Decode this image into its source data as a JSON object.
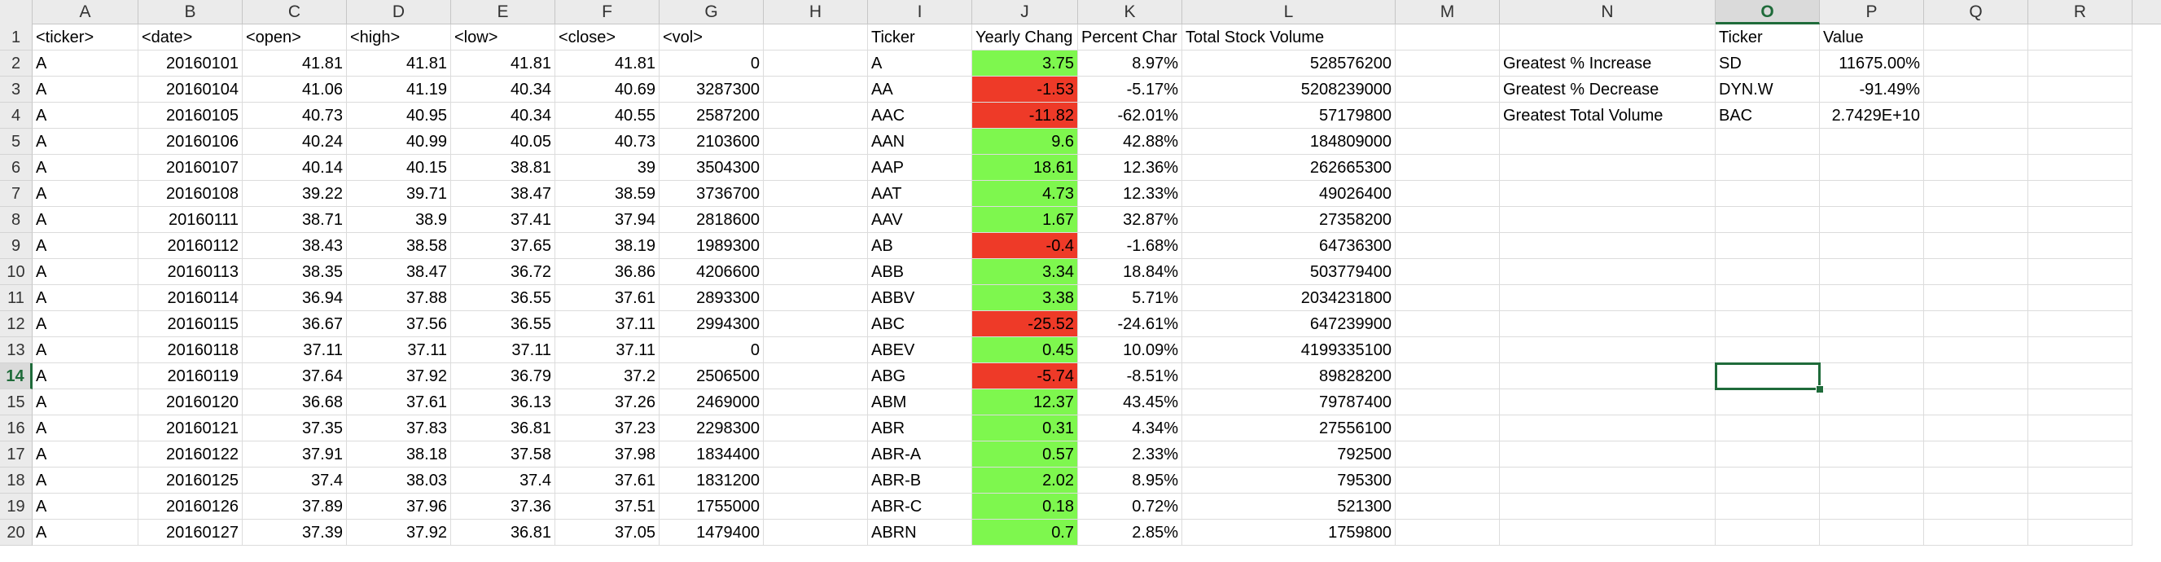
{
  "columns": [
    "A",
    "B",
    "C",
    "D",
    "E",
    "F",
    "G",
    "H",
    "I",
    "J",
    "K",
    "L",
    "M",
    "N",
    "O",
    "P",
    "Q",
    "R"
  ],
  "selected_column": "O",
  "selected_row": 14,
  "selected_cell": "O14",
  "fill_colors": {
    "positive": "#7ef74e",
    "negative": "#ee3a28",
    "selection": "#1f6b3a"
  },
  "rows": [
    {
      "n": "1",
      "A": "<ticker>",
      "B": "<date>",
      "C": "<open>",
      "D": "<high>",
      "E": "<low>",
      "F": "<close>",
      "G": "<vol>",
      "I": "Ticker",
      "J": "Yearly Chang",
      "K": "Percent Char",
      "L": "Total Stock Volume",
      "N": "",
      "O": "Ticker",
      "P": "Value"
    },
    {
      "n": "2",
      "A": "A",
      "B": "20160101",
      "C": "41.81",
      "D": "41.81",
      "E": "41.81",
      "F": "41.81",
      "G": "0",
      "I": "A",
      "J": "3.75",
      "K": "8.97%",
      "L": "528576200",
      "N": "Greatest % Increase",
      "O": "SD",
      "P": "11675.00%"
    },
    {
      "n": "3",
      "A": "A",
      "B": "20160104",
      "C": "41.06",
      "D": "41.19",
      "E": "40.34",
      "F": "40.69",
      "G": "3287300",
      "I": "AA",
      "J": "-1.53",
      "K": "-5.17%",
      "L": "5208239000",
      "N": "Greatest % Decrease",
      "O": "DYN.W",
      "P": "-91.49%"
    },
    {
      "n": "4",
      "A": "A",
      "B": "20160105",
      "C": "40.73",
      "D": "40.95",
      "E": "40.34",
      "F": "40.55",
      "G": "2587200",
      "I": "AAC",
      "J": "-11.82",
      "K": "-62.01%",
      "L": "57179800",
      "N": "Greatest Total Volume",
      "O": "BAC",
      "P": "2.7429E+10"
    },
    {
      "n": "5",
      "A": "A",
      "B": "20160106",
      "C": "40.24",
      "D": "40.99",
      "E": "40.05",
      "F": "40.73",
      "G": "2103600",
      "I": "AAN",
      "J": "9.6",
      "K": "42.88%",
      "L": "184809000"
    },
    {
      "n": "6",
      "A": "A",
      "B": "20160107",
      "C": "40.14",
      "D": "40.15",
      "E": "38.81",
      "F": "39",
      "G": "3504300",
      "I": "AAP",
      "J": "18.61",
      "K": "12.36%",
      "L": "262665300"
    },
    {
      "n": "7",
      "A": "A",
      "B": "20160108",
      "C": "39.22",
      "D": "39.71",
      "E": "38.47",
      "F": "38.59",
      "G": "3736700",
      "I": "AAT",
      "J": "4.73",
      "K": "12.33%",
      "L": "49026400"
    },
    {
      "n": "8",
      "A": "A",
      "B": "20160111",
      "C": "38.71",
      "D": "38.9",
      "E": "37.41",
      "F": "37.94",
      "G": "2818600",
      "I": "AAV",
      "J": "1.67",
      "K": "32.87%",
      "L": "27358200"
    },
    {
      "n": "9",
      "A": "A",
      "B": "20160112",
      "C": "38.43",
      "D": "38.58",
      "E": "37.65",
      "F": "38.19",
      "G": "1989300",
      "I": "AB",
      "J": "-0.4",
      "K": "-1.68%",
      "L": "64736300"
    },
    {
      "n": "10",
      "A": "A",
      "B": "20160113",
      "C": "38.35",
      "D": "38.47",
      "E": "36.72",
      "F": "36.86",
      "G": "4206600",
      "I": "ABB",
      "J": "3.34",
      "K": "18.84%",
      "L": "503779400"
    },
    {
      "n": "11",
      "A": "A",
      "B": "20160114",
      "C": "36.94",
      "D": "37.88",
      "E": "36.55",
      "F": "37.61",
      "G": "2893300",
      "I": "ABBV",
      "J": "3.38",
      "K": "5.71%",
      "L": "2034231800"
    },
    {
      "n": "12",
      "A": "A",
      "B": "20160115",
      "C": "36.67",
      "D": "37.56",
      "E": "36.55",
      "F": "37.11",
      "G": "2994300",
      "I": "ABC",
      "J": "-25.52",
      "K": "-24.61%",
      "L": "647239900"
    },
    {
      "n": "13",
      "A": "A",
      "B": "20160118",
      "C": "37.11",
      "D": "37.11",
      "E": "37.11",
      "F": "37.11",
      "G": "0",
      "I": "ABEV",
      "J": "0.45",
      "K": "10.09%",
      "L": "4199335100"
    },
    {
      "n": "14",
      "A": "A",
      "B": "20160119",
      "C": "37.64",
      "D": "37.92",
      "E": "36.79",
      "F": "37.2",
      "G": "2506500",
      "I": "ABG",
      "J": "-5.74",
      "K": "-8.51%",
      "L": "89828200"
    },
    {
      "n": "15",
      "A": "A",
      "B": "20160120",
      "C": "36.68",
      "D": "37.61",
      "E": "36.13",
      "F": "37.26",
      "G": "2469000",
      "I": "ABM",
      "J": "12.37",
      "K": "43.45%",
      "L": "79787400"
    },
    {
      "n": "16",
      "A": "A",
      "B": "20160121",
      "C": "37.35",
      "D": "37.83",
      "E": "36.81",
      "F": "37.23",
      "G": "2298300",
      "I": "ABR",
      "J": "0.31",
      "K": "4.34%",
      "L": "27556100"
    },
    {
      "n": "17",
      "A": "A",
      "B": "20160122",
      "C": "37.91",
      "D": "38.18",
      "E": "37.58",
      "F": "37.98",
      "G": "1834400",
      "I": "ABR-A",
      "J": "0.57",
      "K": "2.33%",
      "L": "792500"
    },
    {
      "n": "18",
      "A": "A",
      "B": "20160125",
      "C": "37.4",
      "D": "38.03",
      "E": "37.4",
      "F": "37.61",
      "G": "1831200",
      "I": "ABR-B",
      "J": "2.02",
      "K": "8.95%",
      "L": "795300"
    },
    {
      "n": "19",
      "A": "A",
      "B": "20160126",
      "C": "37.89",
      "D": "37.96",
      "E": "37.36",
      "F": "37.51",
      "G": "1755000",
      "I": "ABR-C",
      "J": "0.18",
      "K": "0.72%",
      "L": "521300"
    },
    {
      "n": "20",
      "A": "A",
      "B": "20160127",
      "C": "37.39",
      "D": "37.92",
      "E": "36.81",
      "F": "37.05",
      "G": "1479400",
      "I": "ABRN",
      "J": "0.7",
      "K": "2.85%",
      "L": "1759800"
    }
  ]
}
